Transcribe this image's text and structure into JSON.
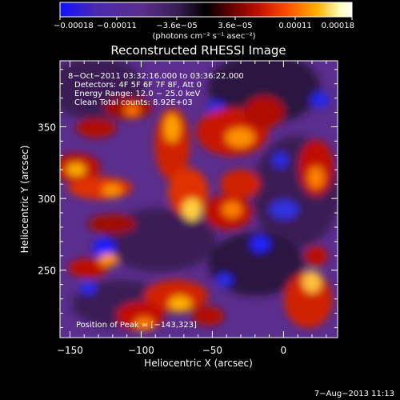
{
  "chart_data": {
    "type": "heatmap",
    "title": "Reconstructed RHESSI Image",
    "xlabel": "Heliocentric X (arcsec)",
    "ylabel": "Heliocentric Y (arcsec)",
    "xlim": [
      -157,
      38
    ],
    "ylim": [
      203,
      396
    ],
    "x_ticks": [
      -150,
      -100,
      -50,
      0
    ],
    "x_tick_labels": [
      "−150",
      "−100",
      "−50",
      "0"
    ],
    "y_ticks": [
      250,
      300,
      350
    ],
    "y_tick_labels": [
      "250",
      "300",
      "350"
    ],
    "colorbar": {
      "range": [
        -0.00018,
        0.00018
      ],
      "tick_values": [
        -0.00018,
        -0.00011,
        -3.6e-05,
        3.6e-05,
        0.00011,
        0.00018
      ],
      "tick_labels": [
        "−0.00018",
        "−0.00011",
        "−3.6e−05",
        "3.6e−05",
        "0.00011",
        "0.00018"
      ],
      "unit_label": "(photons cm⁻² s⁻¹ asec⁻²)"
    },
    "annotations": [
      " 8−Oct−2011 03:32:16.000 to 03:36:22.000",
      "Detectors: 4F 5F 6F 7F 8F, Att 0",
      "Energy Range: 12.0 − 25.0 keV",
      "Clean     Total counts: 8.92E+03"
    ],
    "peak_label": "Position of Peak = [−143,323]",
    "peak": {
      "x": -143,
      "y": 323
    },
    "colors": [
      "#1010ff",
      "#4a2ab0",
      "#5a2e8c",
      "#3a1f55",
      "#000000",
      "#600000",
      "#c01000",
      "#ff5000",
      "#ffb000",
      "#ffffc0",
      "#ffffff"
    ]
  },
  "footer": {
    "date": "7−Aug−2013 11:13"
  }
}
